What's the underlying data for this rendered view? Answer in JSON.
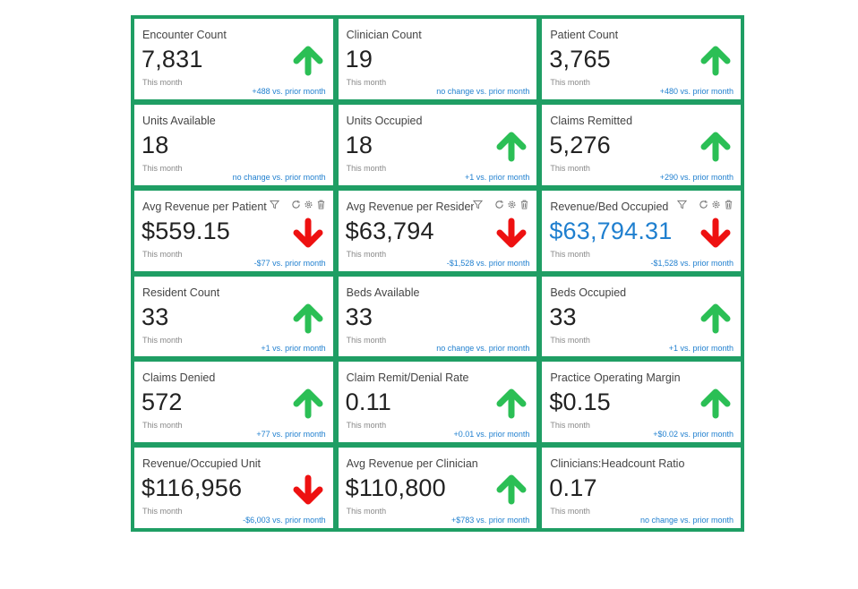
{
  "colors": {
    "frame": "#1f9e64",
    "up": "#2bbf55",
    "down": "#ee1111",
    "change_text": "#1f7fcf",
    "highlight_value": "#1f7fcf"
  },
  "cards": [
    {
      "title": "Encounter Count",
      "value": "7,831",
      "sub": "This month",
      "change": "+488 vs. prior month",
      "trend": "up"
    },
    {
      "title": "Clinician Count",
      "value": "19",
      "sub": "This month",
      "change": "no change vs. prior month",
      "trend": "none"
    },
    {
      "title": "Patient Count",
      "value": "3,765",
      "sub": "This month",
      "change": "+480 vs. prior month",
      "trend": "up"
    },
    {
      "title": "Units Available",
      "value": "18",
      "sub": "This month",
      "change": "no change vs. prior month",
      "trend": "none"
    },
    {
      "title": "Units Occupied",
      "value": "18",
      "sub": "This month",
      "change": "+1 vs. prior month",
      "trend": "up"
    },
    {
      "title": "Claims Remitted",
      "value": "5,276",
      "sub": "This month",
      "change": "+290 vs. prior month",
      "trend": "up"
    },
    {
      "title": "Avg Revenue per Patient",
      "value": "$559.15",
      "sub": "This month",
      "change": "-$77 vs. prior month",
      "trend": "down",
      "tools": true
    },
    {
      "title": "Avg Revenue per Resident",
      "value": "$63,794",
      "sub": "This month",
      "change": "-$1,528 vs. prior month",
      "trend": "down",
      "tools": true
    },
    {
      "title": "Revenue/Bed Occupied",
      "value": "$63,794.31",
      "sub": "This month",
      "change": "-$1,528 vs. prior month",
      "trend": "down",
      "tools": true,
      "value_highlight": true
    },
    {
      "title": "Resident Count",
      "value": "33",
      "sub": "This month",
      "change": "+1 vs. prior month",
      "trend": "up"
    },
    {
      "title": "Beds Available",
      "value": "33",
      "sub": "This month",
      "change": "no change vs. prior month",
      "trend": "none"
    },
    {
      "title": "Beds Occupied",
      "value": "33",
      "sub": "This month",
      "change": "+1 vs. prior month",
      "trend": "up"
    },
    {
      "title": "Claims Denied",
      "value": "572",
      "sub": "This month",
      "change": "+77 vs. prior month",
      "trend": "up"
    },
    {
      "title": "Claim Remit/Denial Rate",
      "value": "0.11",
      "sub": "This month",
      "change": "+0.01 vs. prior month",
      "trend": "up"
    },
    {
      "title": "Practice Operating Margin",
      "value": "$0.15",
      "sub": "This month",
      "change": "+$0.02 vs. prior month",
      "trend": "up"
    },
    {
      "title": "Revenue/Occupied Unit",
      "value": "$116,956",
      "sub": "This month",
      "change": "-$6,003 vs. prior month",
      "trend": "down"
    },
    {
      "title": "Avg Revenue per Clinician",
      "value": "$110,800",
      "sub": "This month",
      "change": "+$783 vs. prior month",
      "trend": "up"
    },
    {
      "title": "Clinicians:Headcount Ratio",
      "value": "0.17",
      "sub": "This month",
      "change": "no change vs. prior month",
      "trend": "none"
    }
  ]
}
